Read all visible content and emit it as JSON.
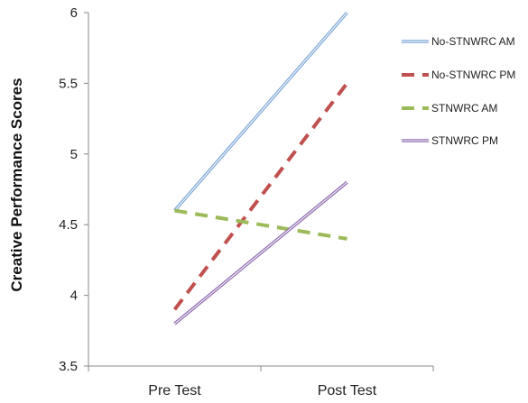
{
  "chart_data": {
    "type": "line",
    "title": "",
    "xlabel": "",
    "ylabel": "Creative Performance Scores",
    "categories": [
      "Pre Test",
      "Post Test"
    ],
    "ylim": [
      3.5,
      6
    ],
    "yticks": [
      "3.5",
      "4",
      "4.5",
      "5",
      "5.5",
      "6"
    ],
    "grid": false,
    "legend_position": "right",
    "series": [
      {
        "name": "No-STNWRC AM",
        "values": [
          4.6,
          6.0
        ],
        "color": "#7fa8d8",
        "style": "solid-double"
      },
      {
        "name": "No-STNWRC PM",
        "values": [
          3.9,
          5.5
        ],
        "color": "#c0504d",
        "style": "dashed"
      },
      {
        "name": "STNWRC AM",
        "values": [
          4.6,
          4.4
        ],
        "color": "#9bbb59",
        "style": "dashed"
      },
      {
        "name": "STNWRC PM",
        "values": [
          3.8,
          4.8
        ],
        "color": "#8f6bb0",
        "style": "solid-double"
      }
    ]
  }
}
